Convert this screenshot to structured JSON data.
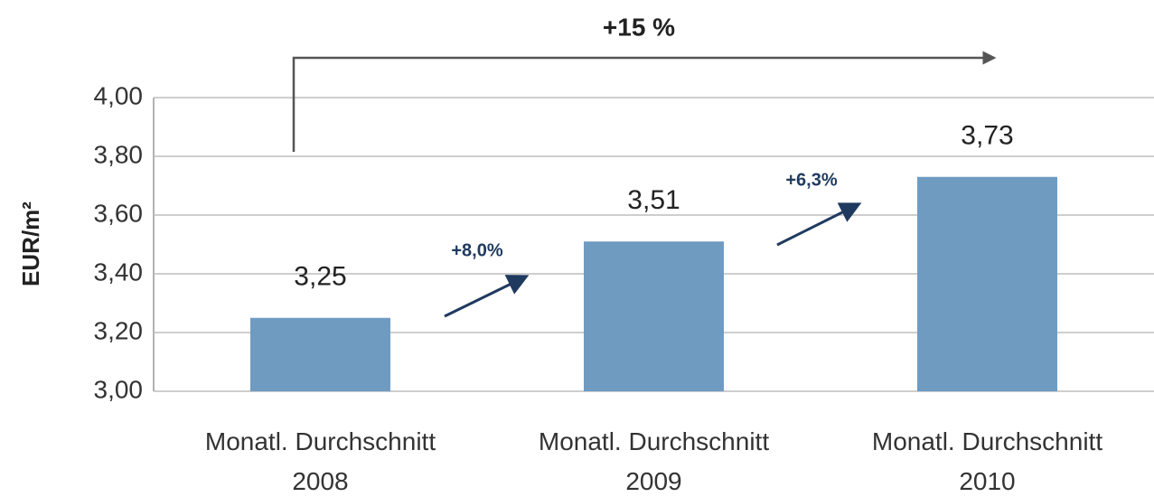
{
  "chart_data": {
    "type": "bar",
    "y_label": "EUR/m²",
    "categories": [
      "Monatl. Durchschnitt\n2008",
      "Monatl. Durchschnitt\n2009",
      "Monatl. Durchschnitt\n2010"
    ],
    "values": [
      3.25,
      3.51,
      3.73
    ],
    "value_labels": [
      "3,25",
      "3,51",
      "3,73"
    ],
    "color": "#6f9bc1",
    "ylim": [
      3.0,
      4.0
    ],
    "yticks": [
      {
        "value": 3.0,
        "label": "3,00"
      },
      {
        "value": 3.2,
        "label": "3,20"
      },
      {
        "value": 3.4,
        "label": "3,40"
      },
      {
        "value": 3.6,
        "label": "3,60"
      },
      {
        "value": 3.8,
        "label": "3,80"
      },
      {
        "value": 4.0,
        "label": "4,00"
      }
    ],
    "grid": true,
    "annotations": [
      "+8,0%",
      "+6,3%",
      "+15 %"
    ]
  }
}
